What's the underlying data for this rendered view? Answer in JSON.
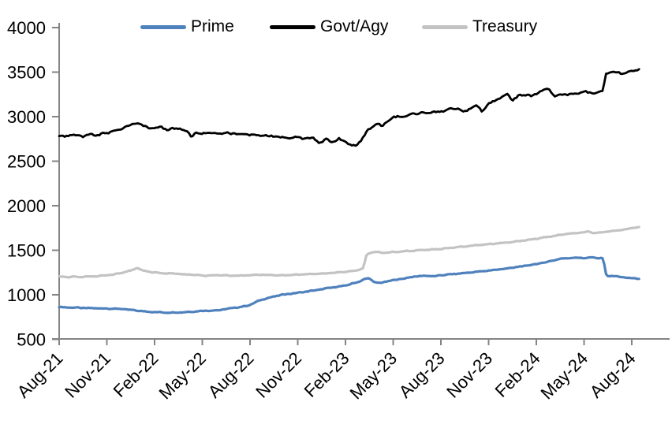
{
  "legend": {
    "items": [
      {
        "label": "Prime",
        "color": "#4F81BD",
        "icon": "line-swatch"
      },
      {
        "label": "Govt/Agy",
        "color": "#000000",
        "icon": "line-swatch"
      },
      {
        "label": "Treasury",
        "color": "#C3C3C3",
        "icon": "line-swatch"
      }
    ]
  },
  "chart_data": {
    "type": "line",
    "title": "",
    "xlabel": "",
    "ylabel": "",
    "x_unit": "months since Aug-2021",
    "x_tick_labels": [
      "Aug-21",
      "Nov-21",
      "Feb-22",
      "May-22",
      "Aug-22",
      "Nov-22",
      "Feb-23",
      "May-23",
      "Aug-23",
      "Nov-23",
      "Feb-24",
      "May-24",
      "Aug-24"
    ],
    "x_tick_months": [
      0,
      3,
      6,
      9,
      12,
      15,
      18,
      21,
      24,
      27,
      30,
      33,
      36
    ],
    "y_ticks": [
      500,
      1000,
      1500,
      2000,
      2500,
      3000,
      3500,
      4000
    ],
    "ylim": [
      500,
      4000
    ],
    "xlim_months": [
      0,
      38.4
    ],
    "grid": false,
    "legend_position": "top",
    "axis_color": "#848484",
    "series": [
      {
        "name": "Prime",
        "color": "#4F81BD",
        "width": 3.2,
        "noise": 3.5,
        "points": [
          [
            0,
            862
          ],
          [
            0.5,
            858
          ],
          [
            1,
            856
          ],
          [
            1.5,
            852
          ],
          [
            2,
            850
          ],
          [
            2.5,
            848
          ],
          [
            3,
            846
          ],
          [
            3.5,
            843
          ],
          [
            4,
            840
          ],
          [
            4.5,
            830
          ],
          [
            5,
            820
          ],
          [
            5.5,
            812
          ],
          [
            6,
            806
          ],
          [
            6.5,
            802
          ],
          [
            7,
            800
          ],
          [
            7.5,
            802
          ],
          [
            8,
            806
          ],
          [
            8.5,
            812
          ],
          [
            9,
            820
          ],
          [
            9.5,
            823
          ],
          [
            10,
            826
          ],
          [
            10.5,
            840
          ],
          [
            11,
            854
          ],
          [
            11.5,
            866
          ],
          [
            12,
            886
          ],
          [
            12.6,
            938
          ],
          [
            13,
            958
          ],
          [
            13.5,
            980
          ],
          [
            14,
            1000
          ],
          [
            14.5,
            1012
          ],
          [
            15,
            1022
          ],
          [
            15.5,
            1035
          ],
          [
            16,
            1048
          ],
          [
            16.5,
            1062
          ],
          [
            17,
            1078
          ],
          [
            17.5,
            1090
          ],
          [
            18,
            1104
          ],
          [
            18.4,
            1124
          ],
          [
            18.8,
            1144
          ],
          [
            19.2,
            1176
          ],
          [
            19.5,
            1186
          ],
          [
            19.8,
            1142
          ],
          [
            20.2,
            1132
          ],
          [
            20.6,
            1150
          ],
          [
            21,
            1164
          ],
          [
            21.5,
            1178
          ],
          [
            22,
            1194
          ],
          [
            22.4,
            1206
          ],
          [
            22.8,
            1212
          ],
          [
            23.2,
            1214
          ],
          [
            23.6,
            1206
          ],
          [
            24,
            1220
          ],
          [
            24.5,
            1228
          ],
          [
            25,
            1236
          ],
          [
            25.5,
            1244
          ],
          [
            26,
            1254
          ],
          [
            26.5,
            1262
          ],
          [
            27,
            1272
          ],
          [
            27.5,
            1282
          ],
          [
            28,
            1292
          ],
          [
            28.5,
            1304
          ],
          [
            29,
            1318
          ],
          [
            29.5,
            1330
          ],
          [
            30,
            1346
          ],
          [
            30.5,
            1362
          ],
          [
            31,
            1384
          ],
          [
            31.5,
            1404
          ],
          [
            32,
            1412
          ],
          [
            32.5,
            1418
          ],
          [
            33,
            1412
          ],
          [
            33.5,
            1420
          ],
          [
            34,
            1408
          ],
          [
            34.2,
            1414
          ],
          [
            34.4,
            1214
          ],
          [
            34.8,
            1210
          ],
          [
            35.2,
            1204
          ],
          [
            35.6,
            1192
          ],
          [
            36,
            1186
          ],
          [
            36.5,
            1182
          ]
        ]
      },
      {
        "name": "Govt/Agy",
        "color": "#000000",
        "width": 2.8,
        "noise": 8,
        "points": [
          [
            0,
            2775
          ],
          [
            0.5,
            2785
          ],
          [
            1,
            2792
          ],
          [
            1.5,
            2778
          ],
          [
            2,
            2800
          ],
          [
            2.5,
            2796
          ],
          [
            3,
            2818
          ],
          [
            3.5,
            2842
          ],
          [
            4,
            2872
          ],
          [
            4.5,
            2905
          ],
          [
            4.9,
            2930
          ],
          [
            5.3,
            2896
          ],
          [
            5.7,
            2876
          ],
          [
            6,
            2870
          ],
          [
            6.4,
            2890
          ],
          [
            6.8,
            2846
          ],
          [
            7.2,
            2866
          ],
          [
            7.6,
            2870
          ],
          [
            8,
            2836
          ],
          [
            8.3,
            2782
          ],
          [
            8.6,
            2814
          ],
          [
            9,
            2810
          ],
          [
            9.5,
            2816
          ],
          [
            10,
            2810
          ],
          [
            10.5,
            2814
          ],
          [
            11,
            2810
          ],
          [
            11.5,
            2806
          ],
          [
            12,
            2800
          ],
          [
            12.5,
            2792
          ],
          [
            13,
            2786
          ],
          [
            13.5,
            2776
          ],
          [
            14,
            2770
          ],
          [
            14.5,
            2762
          ],
          [
            15,
            2766
          ],
          [
            15.5,
            2752
          ],
          [
            16,
            2756
          ],
          [
            16.4,
            2702
          ],
          [
            16.8,
            2746
          ],
          [
            17.2,
            2712
          ],
          [
            17.6,
            2750
          ],
          [
            18,
            2722
          ],
          [
            18.4,
            2666
          ],
          [
            18.7,
            2682
          ],
          [
            19,
            2732
          ],
          [
            19.4,
            2852
          ],
          [
            19.8,
            2906
          ],
          [
            20,
            2920
          ],
          [
            20.3,
            2892
          ],
          [
            20.6,
            2950
          ],
          [
            21,
            2988
          ],
          [
            21.4,
            3010
          ],
          [
            21.8,
            3000
          ],
          [
            22.2,
            3038
          ],
          [
            22.6,
            3030
          ],
          [
            23,
            3048
          ],
          [
            23.4,
            3044
          ],
          [
            23.8,
            3058
          ],
          [
            24.2,
            3068
          ],
          [
            24.6,
            3088
          ],
          [
            25,
            3098
          ],
          [
            25.4,
            3052
          ],
          [
            25.8,
            3088
          ],
          [
            26.2,
            3128
          ],
          [
            26.6,
            3062
          ],
          [
            27,
            3148
          ],
          [
            27.4,
            3178
          ],
          [
            27.8,
            3218
          ],
          [
            28.2,
            3254
          ],
          [
            28.5,
            3186
          ],
          [
            28.9,
            3234
          ],
          [
            29.3,
            3248
          ],
          [
            29.7,
            3230
          ],
          [
            30.1,
            3268
          ],
          [
            30.4,
            3298
          ],
          [
            30.8,
            3308
          ],
          [
            31.1,
            3232
          ],
          [
            31.5,
            3244
          ],
          [
            32,
            3250
          ],
          [
            32.5,
            3260
          ],
          [
            33,
            3284
          ],
          [
            33.4,
            3264
          ],
          [
            33.8,
            3270
          ],
          [
            34.1,
            3290
          ],
          [
            34.2,
            3292
          ],
          [
            34.35,
            3488
          ],
          [
            34.8,
            3504
          ],
          [
            35.2,
            3494
          ],
          [
            35.6,
            3486
          ],
          [
            36,
            3514
          ],
          [
            36.5,
            3528
          ]
        ]
      },
      {
        "name": "Treasury",
        "color": "#C3C3C3",
        "width": 3.2,
        "noise": 3.5,
        "points": [
          [
            0,
            1205
          ],
          [
            0.5,
            1198
          ],
          [
            1,
            1202
          ],
          [
            1.5,
            1200
          ],
          [
            2,
            1206
          ],
          [
            2.5,
            1210
          ],
          [
            3,
            1218
          ],
          [
            3.5,
            1230
          ],
          [
            4,
            1248
          ],
          [
            4.5,
            1272
          ],
          [
            4.9,
            1300
          ],
          [
            5.3,
            1272
          ],
          [
            5.7,
            1258
          ],
          [
            6,
            1248
          ],
          [
            6.5,
            1242
          ],
          [
            7,
            1240
          ],
          [
            7.5,
            1234
          ],
          [
            8,
            1230
          ],
          [
            8.5,
            1222
          ],
          [
            9,
            1216
          ],
          [
            9.5,
            1214
          ],
          [
            10,
            1220
          ],
          [
            10.5,
            1216
          ],
          [
            11,
            1214
          ],
          [
            11.5,
            1218
          ],
          [
            12,
            1222
          ],
          [
            12.5,
            1226
          ],
          [
            13,
            1224
          ],
          [
            13.5,
            1220
          ],
          [
            14,
            1218
          ],
          [
            14.5,
            1222
          ],
          [
            15,
            1226
          ],
          [
            15.5,
            1230
          ],
          [
            16,
            1234
          ],
          [
            16.5,
            1238
          ],
          [
            17,
            1244
          ],
          [
            17.5,
            1250
          ],
          [
            18,
            1258
          ],
          [
            18.4,
            1268
          ],
          [
            18.8,
            1278
          ],
          [
            19.1,
            1292
          ],
          [
            19.35,
            1460
          ],
          [
            19.7,
            1478
          ],
          [
            20,
            1482
          ],
          [
            20.4,
            1470
          ],
          [
            20.8,
            1478
          ],
          [
            21.2,
            1482
          ],
          [
            21.6,
            1488
          ],
          [
            22,
            1492
          ],
          [
            22.5,
            1498
          ],
          [
            23,
            1504
          ],
          [
            23.5,
            1508
          ],
          [
            24,
            1515
          ],
          [
            24.5,
            1524
          ],
          [
            25,
            1533
          ],
          [
            25.5,
            1542
          ],
          [
            26,
            1552
          ],
          [
            26.5,
            1560
          ],
          [
            27,
            1568
          ],
          [
            27.5,
            1576
          ],
          [
            28,
            1585
          ],
          [
            28.5,
            1595
          ],
          [
            29,
            1605
          ],
          [
            29.5,
            1618
          ],
          [
            30,
            1630
          ],
          [
            30.5,
            1645
          ],
          [
            31,
            1658
          ],
          [
            31.5,
            1672
          ],
          [
            32,
            1688
          ],
          [
            32.5,
            1695
          ],
          [
            33,
            1702
          ],
          [
            33.3,
            1712
          ],
          [
            33.6,
            1692
          ],
          [
            34,
            1700
          ],
          [
            34.4,
            1708
          ],
          [
            34.8,
            1716
          ],
          [
            35.2,
            1722
          ],
          [
            35.6,
            1736
          ],
          [
            36,
            1748
          ],
          [
            36.5,
            1760
          ]
        ]
      }
    ]
  }
}
